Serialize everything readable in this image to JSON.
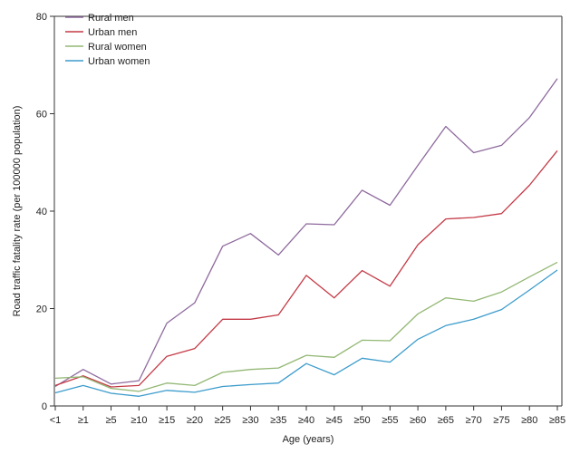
{
  "chart_data": {
    "type": "line",
    "xlabel": "Age (years)",
    "ylabel": "Road traffic fatality rate (per 100000 population)",
    "ylim": [
      0,
      80
    ],
    "yticks": [
      0,
      20,
      40,
      60,
      80
    ],
    "grid": false,
    "legend_position": "top-left",
    "categories": [
      "<1",
      "≥1",
      "≥5",
      "≥10",
      "≥15",
      "≥20",
      "≥25",
      "≥30",
      "≥35",
      "≥40",
      "≥45",
      "≥50",
      "≥55",
      "≥60",
      "≥65",
      "≥70",
      "≥75",
      "≥80",
      "≥85"
    ],
    "series": [
      {
        "name": "Rural men",
        "color": "#8e6a9e",
        "values": [
          4.0,
          7.5,
          4.5,
          5.2,
          17.0,
          21.2,
          32.8,
          35.4,
          31.0,
          37.4,
          37.2,
          44.3,
          41.2,
          49.4,
          57.4,
          52.0,
          53.5,
          59.2,
          67.2
        ]
      },
      {
        "name": "Urban men",
        "color": "#c43a46",
        "values": [
          4.2,
          6.2,
          3.9,
          4.2,
          10.2,
          11.8,
          17.8,
          17.8,
          18.7,
          26.8,
          22.2,
          27.8,
          24.6,
          33.1,
          38.4,
          38.7,
          39.5,
          45.3,
          52.4
        ]
      },
      {
        "name": "Rural women",
        "color": "#93b874",
        "values": [
          5.7,
          6.0,
          3.6,
          3.0,
          4.7,
          4.2,
          6.9,
          7.5,
          7.8,
          10.4,
          10.0,
          13.5,
          13.4,
          18.9,
          22.2,
          21.5,
          23.4,
          26.5,
          29.5
        ]
      },
      {
        "name": "Urban women",
        "color": "#3d9ccc",
        "values": [
          2.7,
          4.2,
          2.6,
          2.0,
          3.2,
          2.8,
          4.0,
          4.4,
          4.7,
          8.7,
          6.4,
          9.8,
          9.0,
          13.7,
          16.5,
          17.8,
          19.8,
          23.8,
          27.9
        ]
      }
    ]
  }
}
